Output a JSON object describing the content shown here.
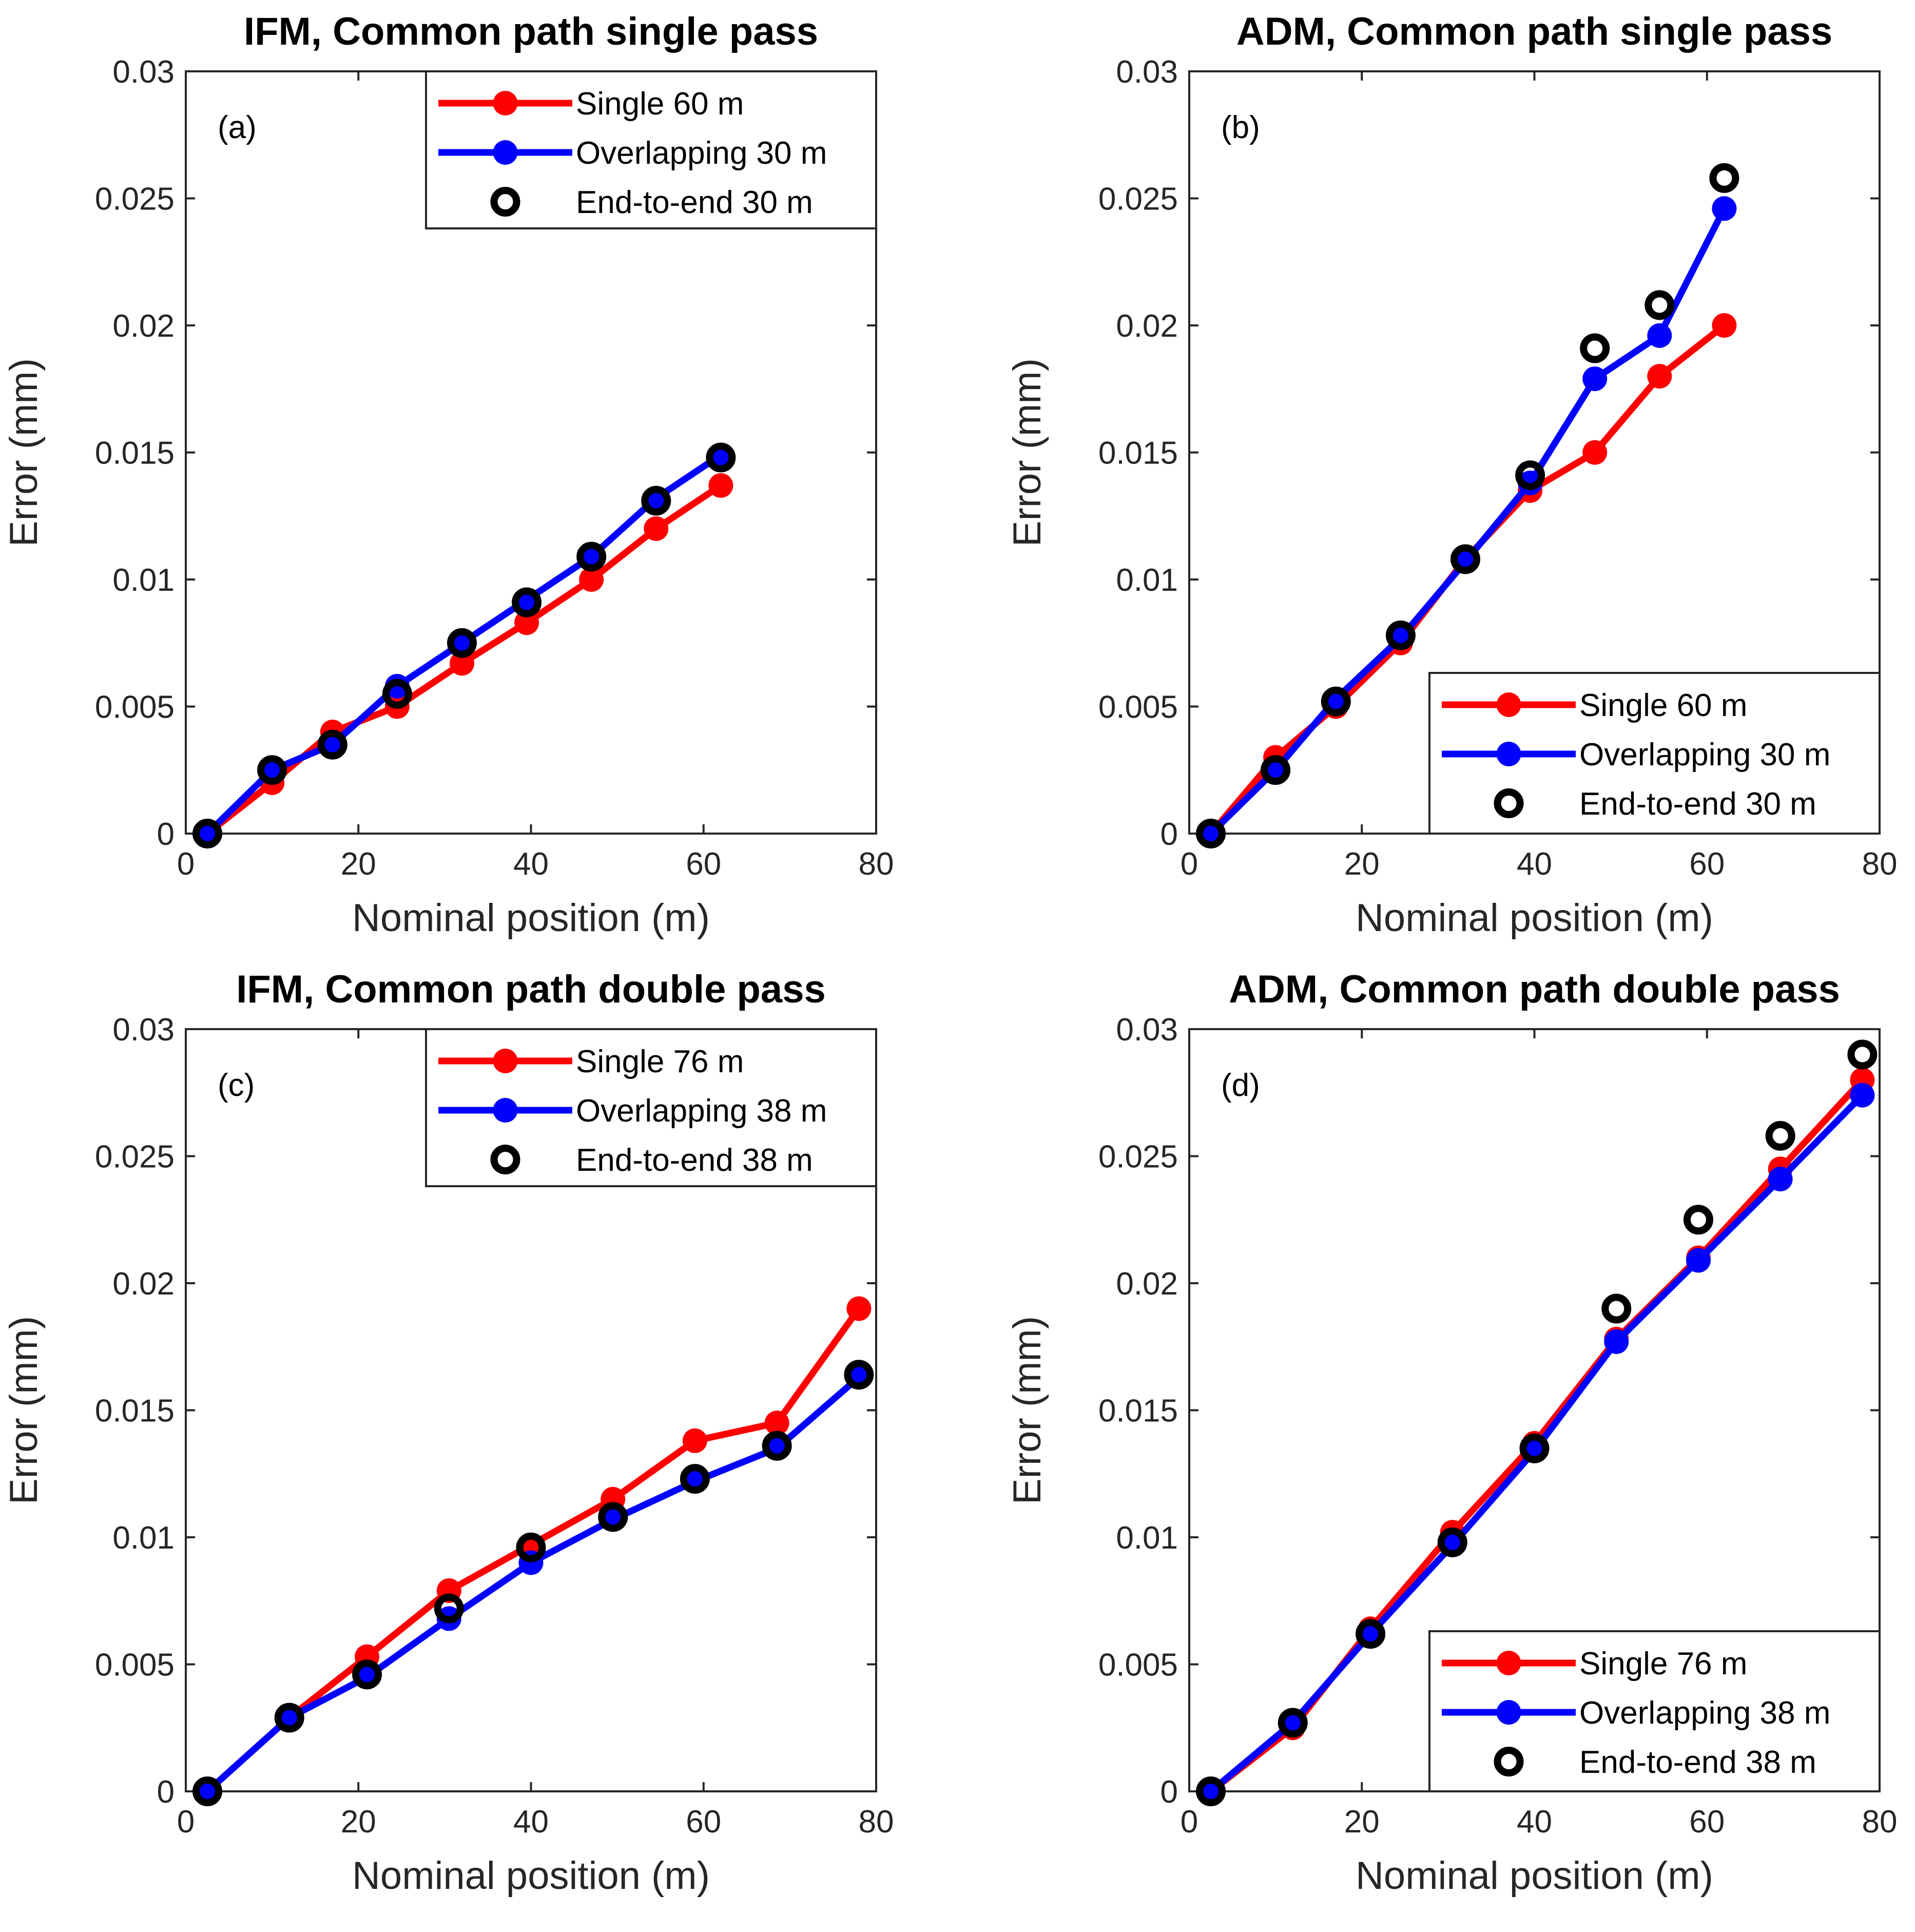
{
  "colors": {
    "single": "#ff0000",
    "overlapping": "#0000ff",
    "end_to_end_fill": "#ffffff",
    "end_to_end_stroke": "#000000"
  },
  "chart_data": [
    {
      "type": "line",
      "title": "IFM, Common path single pass",
      "panel_label": "(a)",
      "xlabel": "Nominal position (m)",
      "ylabel": "Error (mm)",
      "xlim": [
        0,
        80
      ],
      "ylim": [
        0,
        0.03
      ],
      "xticks": [
        "0",
        "20",
        "40",
        "60",
        "80"
      ],
      "yticks": [
        "0",
        "0.005",
        "0.01",
        "0.015",
        "0.02",
        "0.025",
        "0.03"
      ],
      "legend_position": "top-right",
      "series": [
        {
          "name": "Single 60 m",
          "style": "line-marker",
          "color": "#ff0000",
          "x": [
            2.5,
            10,
            17,
            24.5,
            32,
            39.5,
            47,
            54.5,
            62
          ],
          "y": [
            0,
            0.002,
            0.004,
            0.005,
            0.0067,
            0.0083,
            0.01,
            0.012,
            0.0137
          ]
        },
        {
          "name": "Overlapping 30 m",
          "style": "line-marker",
          "color": "#0000ff",
          "x": [
            2.5,
            10,
            17,
            24.5,
            32,
            39.5,
            47,
            54.5,
            62
          ],
          "y": [
            0,
            0.0025,
            0.0035,
            0.0058,
            0.0075,
            0.0092,
            0.0109,
            0.0132,
            0.0149
          ]
        },
        {
          "name": "End-to-end 30 m",
          "style": "open-circle",
          "color": "#000000",
          "x": [
            2.5,
            10,
            17,
            24.5,
            32,
            39.5,
            47,
            54.5,
            62
          ],
          "y": [
            0,
            0.0025,
            0.0035,
            0.0055,
            0.0075,
            0.0091,
            0.0109,
            0.0131,
            0.0148
          ]
        }
      ]
    },
    {
      "type": "line",
      "title": "ADM, Common path single pass",
      "panel_label": "(b)",
      "xlabel": "Nominal position (m)",
      "ylabel": "Error (mm)",
      "xlim": [
        0,
        80
      ],
      "ylim": [
        0,
        0.03
      ],
      "xticks": [
        "0",
        "20",
        "40",
        "60",
        "80"
      ],
      "yticks": [
        "0",
        "0.005",
        "0.01",
        "0.015",
        "0.02",
        "0.025",
        "0.03"
      ],
      "legend_position": "bottom-right",
      "series": [
        {
          "name": "Single 60 m",
          "style": "line-marker",
          "color": "#ff0000",
          "x": [
            2.5,
            10,
            17,
            24.5,
            32,
            39.5,
            47,
            54.5,
            62
          ],
          "y": [
            0,
            0.003,
            0.005,
            0.0075,
            0.0108,
            0.0135,
            0.015,
            0.018,
            0.02
          ]
        },
        {
          "name": "Overlapping 30 m",
          "style": "line-marker",
          "color": "#0000ff",
          "x": [
            2.5,
            10,
            17,
            24.5,
            32,
            39.5,
            47,
            54.5,
            62
          ],
          "y": [
            0,
            0.0025,
            0.0053,
            0.0077,
            0.0107,
            0.0138,
            0.0179,
            0.0196,
            0.0246
          ]
        },
        {
          "name": "End-to-end 30 m",
          "style": "open-circle",
          "color": "#000000",
          "x": [
            2.5,
            10,
            17,
            24.5,
            32,
            39.5,
            47,
            54.5,
            62
          ],
          "y": [
            0,
            0.0025,
            0.0052,
            0.0078,
            0.0108,
            0.0141,
            0.0191,
            0.0208,
            0.0258
          ]
        }
      ]
    },
    {
      "type": "line",
      "title": "IFM, Common path double pass",
      "panel_label": "(c)",
      "xlabel": "Nominal position (m)",
      "ylabel": "Error (mm)",
      "xlim": [
        0,
        80
      ],
      "ylim": [
        0,
        0.03
      ],
      "xticks": [
        "0",
        "20",
        "40",
        "60",
        "80"
      ],
      "yticks": [
        "0",
        "0.005",
        "0.01",
        "0.015",
        "0.02",
        "0.025",
        "0.03"
      ],
      "legend_position": "top-right",
      "series": [
        {
          "name": "Single 76 m",
          "style": "line-marker",
          "color": "#ff0000",
          "x": [
            2.5,
            12,
            21,
            30.5,
            40,
            49.5,
            59,
            68.5,
            78
          ],
          "y": [
            0,
            0.0029,
            0.0053,
            0.0079,
            0.0097,
            0.0115,
            0.0138,
            0.0145,
            0.019
          ]
        },
        {
          "name": "Overlapping 38 m",
          "style": "line-marker",
          "color": "#0000ff",
          "x": [
            2.5,
            12,
            21,
            30.5,
            40,
            49.5,
            59,
            68.5,
            78
          ],
          "y": [
            0,
            0.0029,
            0.0045,
            0.0068,
            0.009,
            0.0107,
            0.0122,
            0.0135,
            0.0163
          ]
        },
        {
          "name": "End-to-end 38 m",
          "style": "open-circle",
          "color": "#000000",
          "x": [
            2.5,
            12,
            21,
            30.5,
            40,
            49.5,
            59,
            68.5,
            78
          ],
          "y": [
            0,
            0.0029,
            0.0046,
            0.0072,
            0.0096,
            0.0108,
            0.0123,
            0.0136,
            0.0164
          ]
        }
      ]
    },
    {
      "type": "line",
      "title": "ADM, Common path double pass",
      "panel_label": "(d)",
      "xlabel": "Nominal position (m)",
      "ylabel": "Error (mm)",
      "xlim": [
        0,
        80
      ],
      "ylim": [
        0,
        0.03
      ],
      "xticks": [
        "0",
        "20",
        "40",
        "60",
        "80"
      ],
      "yticks": [
        "0",
        "0.005",
        "0.01",
        "0.015",
        "0.02",
        "0.025",
        "0.03"
      ],
      "legend_position": "bottom-right",
      "series": [
        {
          "name": "Single 76 m",
          "style": "line-marker",
          "color": "#ff0000",
          "x": [
            2.5,
            12,
            21,
            30.5,
            40,
            49.5,
            59,
            68.5,
            78
          ],
          "y": [
            0,
            0.0025,
            0.0064,
            0.0102,
            0.0137,
            0.0178,
            0.021,
            0.0245,
            0.028
          ]
        },
        {
          "name": "Overlapping 38 m",
          "style": "line-marker",
          "color": "#0000ff",
          "x": [
            2.5,
            12,
            21,
            30.5,
            40,
            49.5,
            59,
            68.5,
            78
          ],
          "y": [
            0,
            0.0027,
            0.0062,
            0.0097,
            0.0134,
            0.0177,
            0.0209,
            0.0241,
            0.0274
          ]
        },
        {
          "name": "End-to-end 38 m",
          "style": "open-circle",
          "color": "#000000",
          "x": [
            2.5,
            12,
            21,
            30.5,
            40,
            49.5,
            59,
            68.5,
            78
          ],
          "y": [
            0,
            0.0027,
            0.0062,
            0.0098,
            0.0135,
            0.019,
            0.0225,
            0.0258,
            0.029
          ]
        }
      ]
    }
  ]
}
